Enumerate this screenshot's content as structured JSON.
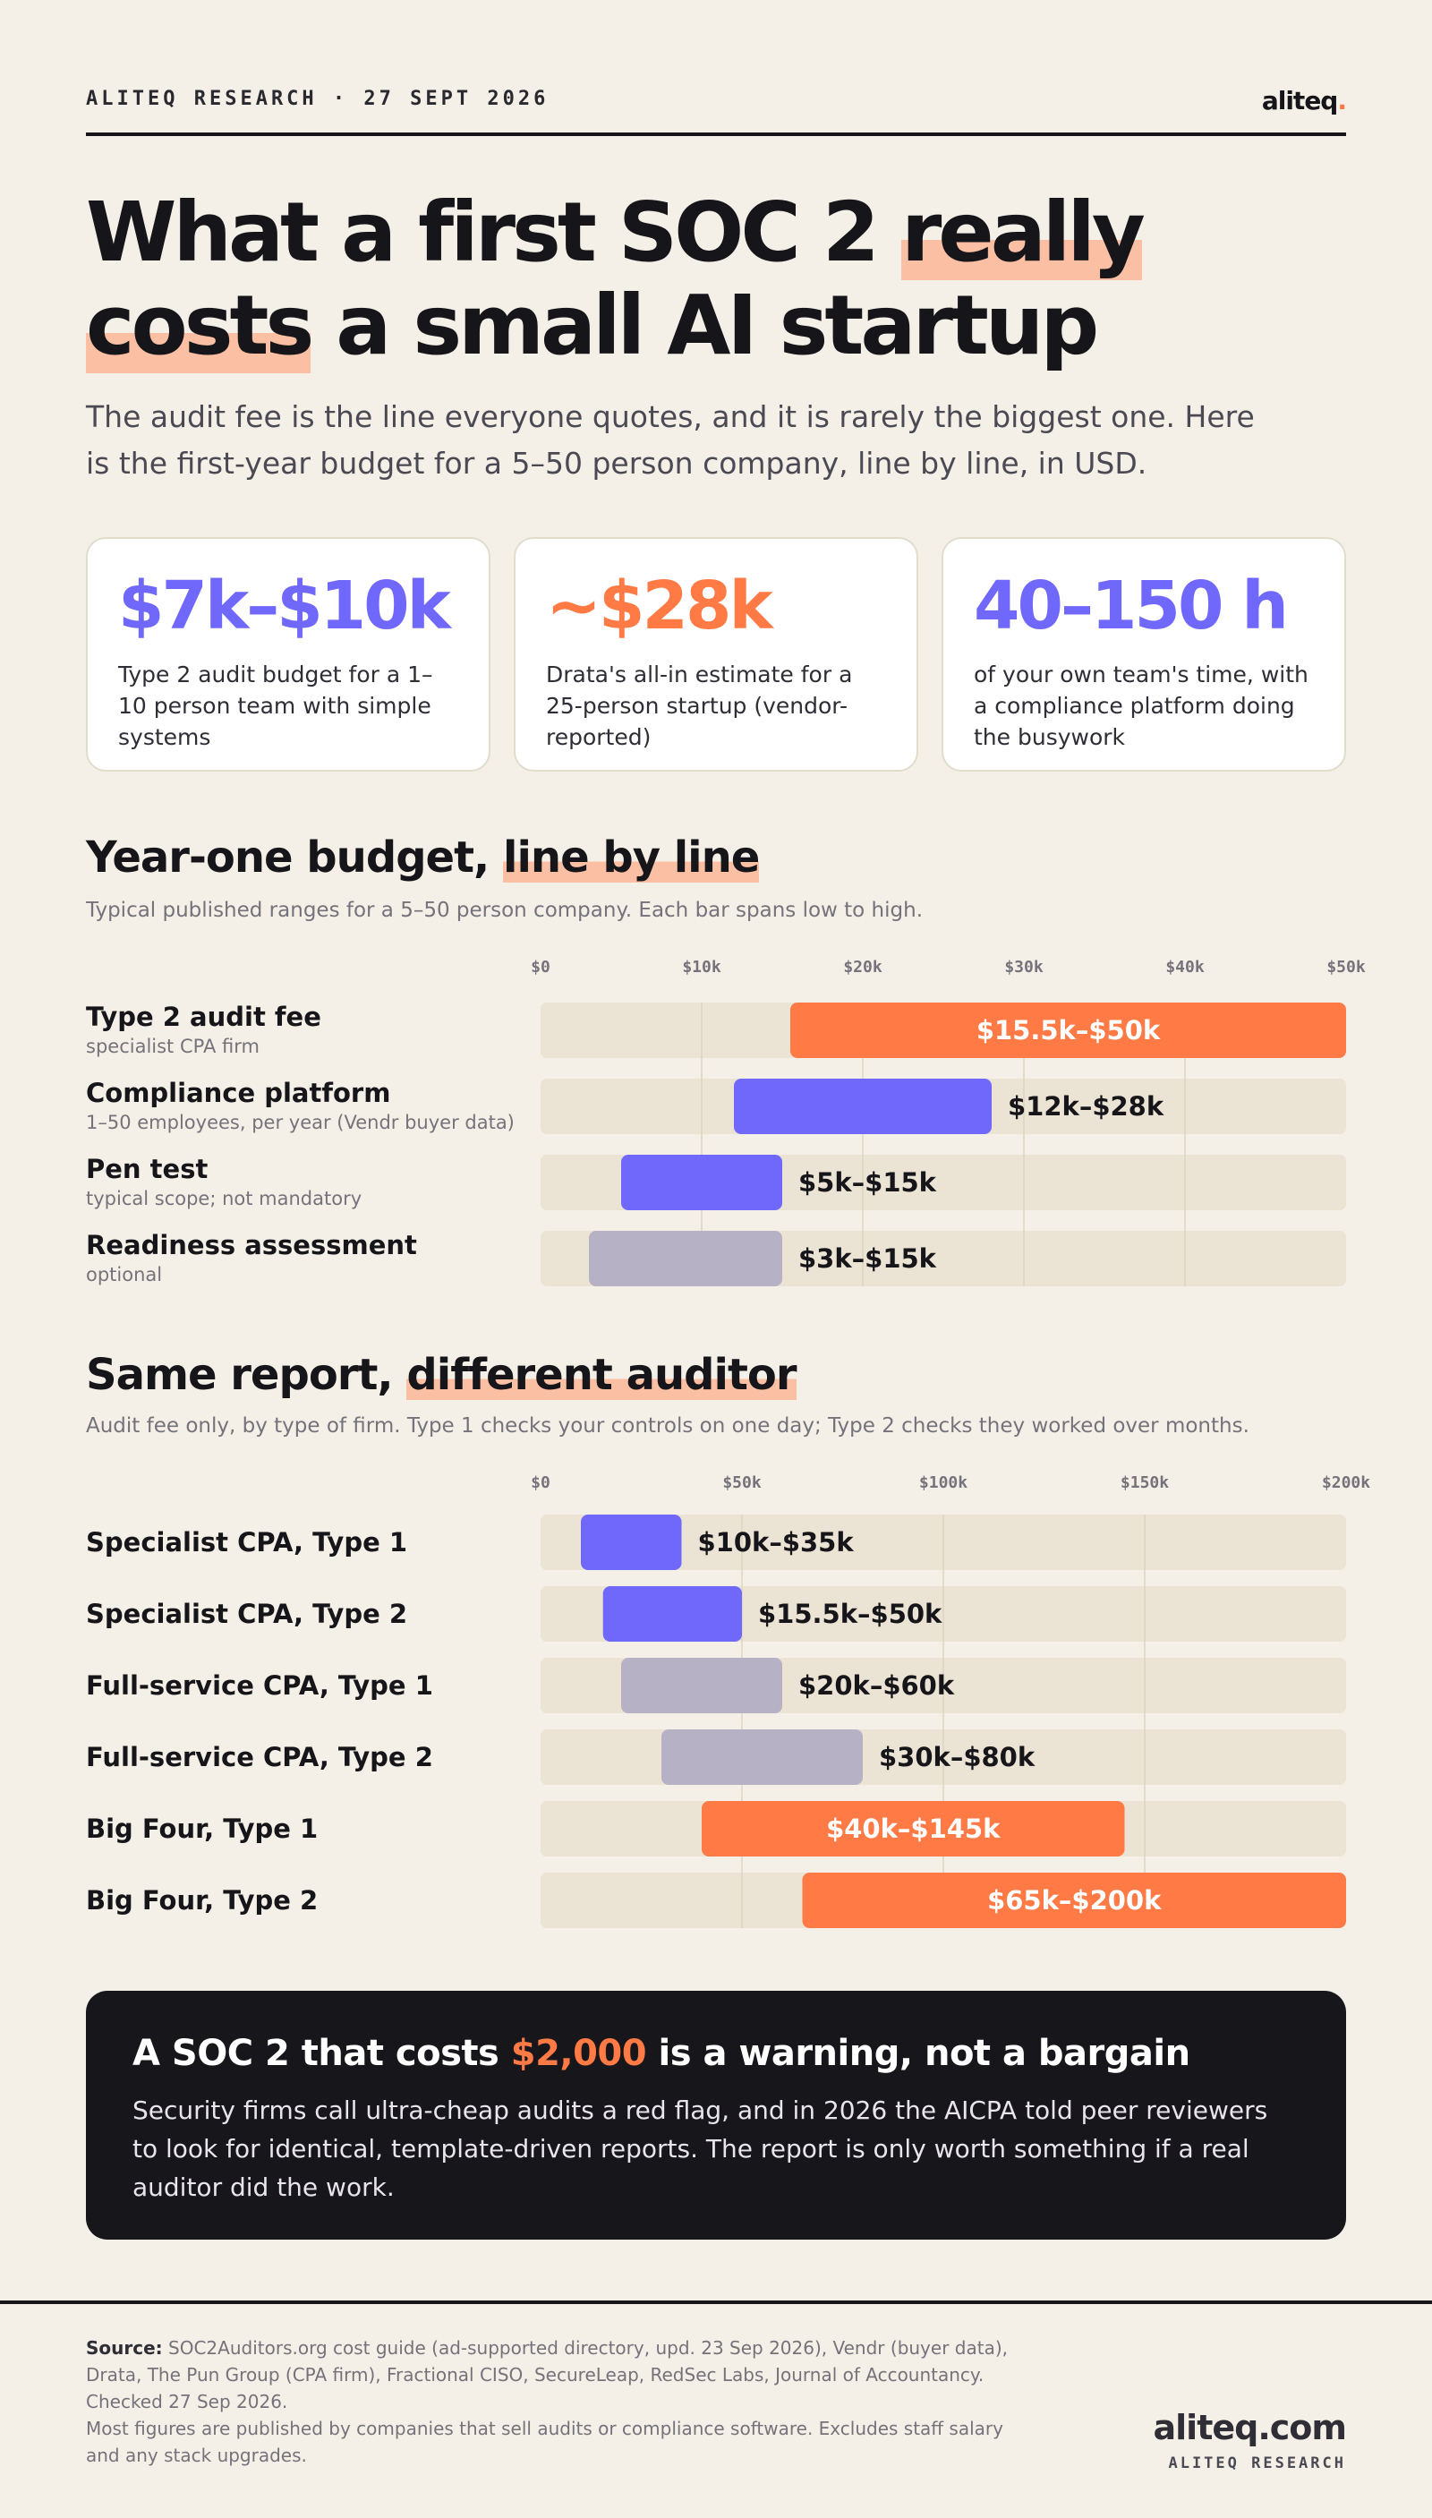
{
  "header": {
    "kicker": "ALITEQ RESEARCH · 27 SEPT 2026",
    "logo_text": "aliteq",
    "logo_dot": "."
  },
  "headline": {
    "part1": "What a first SOC 2 ",
    "highlight1": "really",
    "space": " ",
    "highlight2": "costs",
    "part2": " a small AI startup"
  },
  "subtitle": "The audit fee is the line everyone quotes, and it is rarely the biggest one. Here is the first-year budget for a 5–50 person company, line by line, in USD.",
  "stats": [
    {
      "value": "$7k–$10k",
      "text": "Type 2 audit budget for a 1–10 person team with simple systems",
      "color": "#7068fb"
    },
    {
      "value": "~$28k",
      "text": "Drata's all-in estimate for a 25-person startup (vendor-reported)",
      "color": "#ff7a45"
    },
    {
      "value": "40–150 h",
      "text": "of your own team's time, with a compliance platform doing the busywork",
      "color": "#7068fb"
    }
  ],
  "section1": {
    "title_plain": "Year-one budget, ",
    "title_highlight": "line by line",
    "subtitle": "Typical published ranges for a 5–50 person company. Each bar spans low to high."
  },
  "section2": {
    "title_plain": "Same report, ",
    "title_highlight": "different auditor",
    "subtitle": "Audit fee only, by type of firm. Type 1 checks your controls on one day; Type 2 checks they worked over months."
  },
  "colors": {
    "orange": "#ff7a45",
    "purple": "#7068fb",
    "gray": "#b7b1c5",
    "track": "#ebe3d4"
  },
  "chart_data": [
    {
      "type": "bar",
      "orientation": "horizontal-range",
      "xlim": [
        0,
        50000
      ],
      "tick_values": [
        0,
        10000,
        20000,
        30000,
        40000,
        50000
      ],
      "tick_labels": [
        "$0",
        "$10k",
        "$20k",
        "$30k",
        "$40k",
        "$50k"
      ],
      "categories": [
        "Type 2 audit fee",
        "Compliance platform",
        "Pen test",
        "Readiness assessment"
      ],
      "sublabels": [
        "specialist CPA firm",
        "1–50 employees, per year (Vendr buyer data)",
        "typical scope; not mandatory",
        "optional"
      ],
      "low": [
        15500,
        12000,
        5000,
        3000
      ],
      "high": [
        50000,
        28000,
        15000,
        15000
      ],
      "labels": [
        "$15.5k–$50k",
        "$12k–$28k",
        "$5k–$15k",
        "$3k–$15k"
      ],
      "colors": [
        "orange",
        "purple",
        "purple",
        "gray"
      ],
      "grid": true
    },
    {
      "type": "bar",
      "orientation": "horizontal-range",
      "xlim": [
        0,
        200000
      ],
      "tick_values": [
        0,
        50000,
        100000,
        150000,
        200000
      ],
      "tick_labels": [
        "$0",
        "$50k",
        "$100k",
        "$150k",
        "$200k"
      ],
      "categories": [
        "Specialist CPA, Type 1",
        "Specialist CPA, Type 2",
        "Full-service CPA, Type 1",
        "Full-service CPA, Type 2",
        "Big Four, Type 1",
        "Big Four, Type 2"
      ],
      "low": [
        10000,
        15500,
        20000,
        30000,
        40000,
        65000
      ],
      "high": [
        35000,
        50000,
        60000,
        80000,
        145000,
        200000
      ],
      "labels": [
        "$10k–$35k",
        "$15.5k–$50k",
        "$20k–$60k",
        "$30k–$80k",
        "$40k–$145k",
        "$65k–$200k"
      ],
      "colors": [
        "purple",
        "purple",
        "gray",
        "gray",
        "orange",
        "orange"
      ],
      "grid": true
    }
  ],
  "callout": {
    "title_before": "A SOC 2 that costs ",
    "title_amount": "$2,000",
    "title_after": " is a warning, not a bargain",
    "body": "Security firms call ultra-cheap audits a red flag, and in 2026 the AICPA told peer reviewers to look for identical, template-driven reports. The report is only worth something if a real auditor did the work."
  },
  "footer": {
    "source_label": "Source:",
    "source_text": " SOC2Auditors.org cost guide (ad-supported directory, upd. 23 Sep 2026), Vendr (buyer data), Drata, The Pun Group (CPA firm), Fractional CISO, SecureLeap, RedSec Labs, Journal of Accountancy. Checked 27 Sep 2026.",
    "note": "Most figures are published by companies that sell audits or compliance software. Excludes staff salary and any stack upgrades.",
    "logo_big": "aliteq.com",
    "logo_small": "ALITEQ RESEARCH"
  }
}
